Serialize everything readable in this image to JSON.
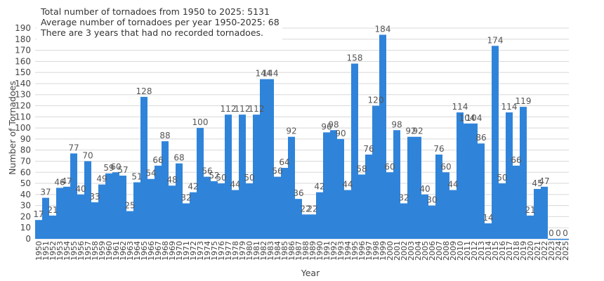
{
  "notes": {
    "line1": "Total number of tornadoes from 1950 to 2025: 5131",
    "line2": "Average number of tornadoes per year 1950-2025: 68",
    "line3": "There are 3 years that had no recorded tornadoes."
  },
  "colors": {
    "bar": "#2f84da",
    "grid": "#d8d8d8",
    "text": "#444444"
  },
  "chart_data": {
    "type": "bar",
    "xlabel": "Year",
    "ylabel": "Number of Tornadoes",
    "ylim": [
      0,
      190
    ],
    "yticks": [
      0,
      10,
      20,
      30,
      40,
      50,
      60,
      70,
      80,
      90,
      100,
      110,
      120,
      130,
      140,
      150,
      160,
      170,
      180,
      190
    ],
    "grid": true,
    "legend": "none",
    "categories": [
      "1950",
      "1951",
      "1952",
      "1953",
      "1954",
      "1955",
      "1956",
      "1957",
      "1958",
      "1959",
      "1960",
      "1961",
      "1962",
      "1963",
      "1964",
      "1965",
      "1966",
      "1967",
      "1968",
      "1969",
      "1970",
      "1971",
      "1972",
      "1973",
      "1974",
      "1975",
      "1976",
      "1977",
      "1978",
      "1979",
      "1980",
      "1981",
      "1982",
      "1983",
      "1984",
      "1985",
      "1986",
      "1987",
      "1988",
      "1989",
      "1990",
      "1991",
      "1992",
      "1993",
      "1994",
      "1995",
      "1996",
      "1997",
      "1998",
      "1999",
      "2000",
      "2001",
      "2002",
      "2003",
      "2004",
      "2005",
      "2006",
      "2007",
      "2008",
      "2009",
      "2010",
      "2011",
      "2012",
      "2013",
      "2014",
      "2015",
      "2016",
      "2017",
      "2018",
      "2019",
      "2020",
      "2021",
      "2022",
      "2023",
      "2024",
      "2025"
    ],
    "values": [
      17,
      37,
      21,
      46,
      47,
      77,
      40,
      70,
      33,
      49,
      59,
      60,
      57,
      25,
      51,
      128,
      54,
      66,
      88,
      48,
      68,
      32,
      42,
      100,
      56,
      52,
      50,
      112,
      44,
      112,
      50,
      112,
      144,
      144,
      56,
      64,
      92,
      36,
      22,
      22,
      42,
      96,
      98,
      90,
      44,
      158,
      58,
      76,
      120,
      184,
      60,
      98,
      32,
      92,
      92,
      40,
      30,
      76,
      60,
      44,
      114,
      104,
      104,
      86,
      14,
      174,
      50,
      114,
      66,
      119,
      21,
      45,
      47,
      0,
      0,
      0
    ]
  }
}
